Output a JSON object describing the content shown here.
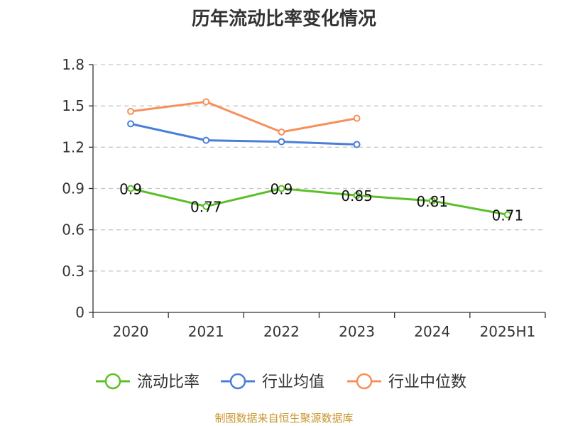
{
  "chart_data": {
    "type": "line",
    "title": "历年流动比率变化情况",
    "categories": [
      "2020",
      "2021",
      "2022",
      "2023",
      "2024",
      "2025H1"
    ],
    "ylim": [
      0,
      1.8
    ],
    "yticks": [
      "0",
      "0.3",
      "0.6",
      "0.9",
      "1.2",
      "1.5",
      "1.8"
    ],
    "grid": true,
    "legend_position": "bottom",
    "series": [
      {
        "name": "流动比率",
        "color": "#5cbf28",
        "values": [
          0.9,
          0.77,
          0.9,
          0.85,
          0.81,
          0.71
        ],
        "labels": [
          "0.9",
          "0.77",
          "0.9",
          "0.85",
          "0.81",
          "0.71"
        ],
        "show_labels": true
      },
      {
        "name": "行业均值",
        "color": "#4a7fd8",
        "values": [
          1.37,
          1.25,
          1.24,
          1.22,
          null,
          null
        ],
        "show_labels": false
      },
      {
        "name": "行业中位数",
        "color": "#f7905a",
        "values": [
          1.46,
          1.53,
          1.31,
          1.41,
          null,
          null
        ],
        "show_labels": false
      }
    ]
  },
  "footer": {
    "source": "制图数据来自恒生聚源数据库"
  }
}
